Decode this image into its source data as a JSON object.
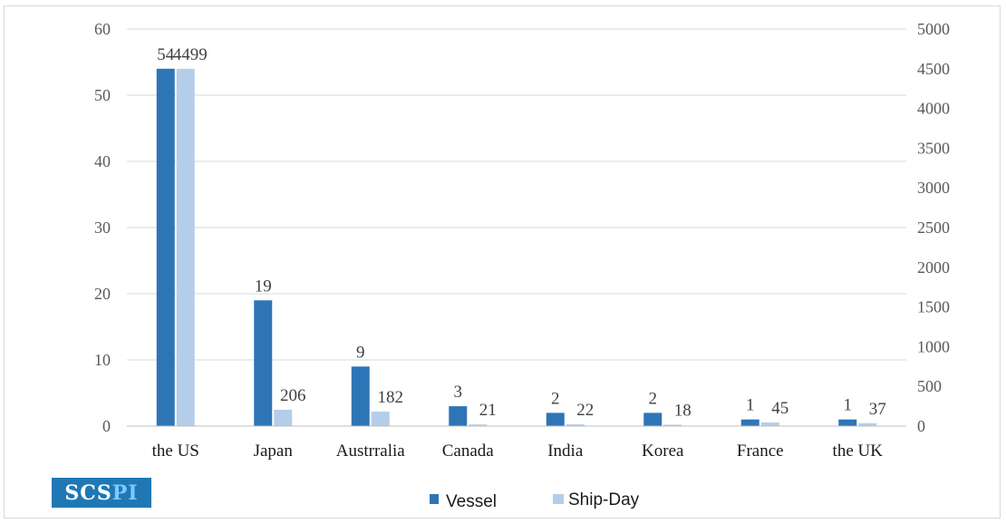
{
  "chart_data": {
    "type": "bar",
    "categories": [
      "the US",
      "Japan",
      "Austrralia",
      "Canada",
      "India",
      "Korea",
      "France",
      "the UK"
    ],
    "series": [
      {
        "name": "Vessel",
        "axis": "left",
        "color": "#2e75b6",
        "values": [
          54,
          19,
          9,
          3,
          2,
          2,
          1,
          1
        ]
      },
      {
        "name": "Ship-Day",
        "axis": "right",
        "color": "#b4cde9",
        "values": [
          4499,
          206,
          182,
          21,
          22,
          18,
          45,
          37
        ]
      }
    ],
    "y_left": {
      "lim": [
        0,
        60
      ],
      "ticks": [
        0,
        10,
        20,
        30,
        40,
        50,
        60
      ]
    },
    "y_right": {
      "lim": [
        0,
        5000
      ],
      "ticks": [
        0,
        500,
        1000,
        1500,
        2000,
        2500,
        3000,
        3500,
        4000,
        4500,
        5000
      ]
    },
    "grid": true,
    "legend_position": "bottom-center",
    "data_labels": true
  },
  "logo": {
    "text_main": "SCS",
    "text_accent": "PI"
  }
}
